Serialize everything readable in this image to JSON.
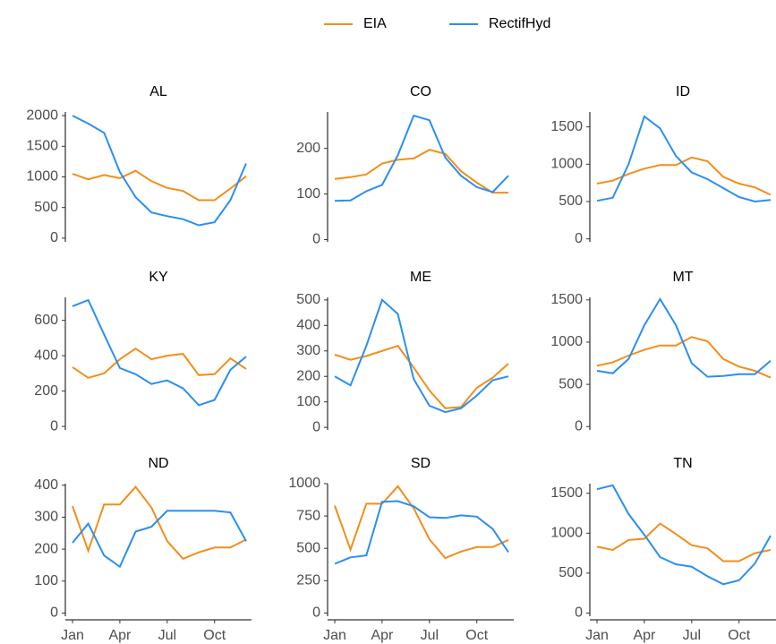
{
  "months": [
    "Jan",
    null,
    null,
    "Apr",
    null,
    null,
    "Jul",
    null,
    null,
    "Oct",
    null,
    null
  ],
  "chart_data": [
    {
      "type": "line",
      "title": "AL",
      "ylim": [
        -60,
        2060
      ],
      "yticks": [
        0,
        500,
        1000,
        1500,
        2000
      ],
      "series": [
        {
          "name": "EIA",
          "color": "#f28e1a",
          "values": [
            1050,
            960,
            1030,
            980,
            1100,
            930,
            820,
            770,
            620,
            620,
            810,
            1010
          ]
        },
        {
          "name": "RectifHyd",
          "color": "#2a8ff0",
          "values": [
            2000,
            1870,
            1720,
            1080,
            670,
            420,
            360,
            310,
            210,
            260,
            620,
            1220
          ]
        }
      ]
    },
    {
      "type": "line",
      "title": "CO",
      "ylim": [
        -5,
        280
      ],
      "yticks": [
        0,
        100,
        200
      ],
      "series": [
        {
          "name": "EIA",
          "color": "#f28e1a",
          "values": [
            133,
            137,
            143,
            167,
            175,
            178,
            197,
            188,
            150,
            125,
            103,
            103
          ]
        },
        {
          "name": "RectifHyd",
          "color": "#2a8ff0",
          "values": [
            85,
            86,
            106,
            120,
            185,
            272,
            262,
            180,
            140,
            115,
            104,
            140
          ]
        }
      ]
    },
    {
      "type": "line",
      "title": "ID",
      "ylim": [
        -40,
        1700
      ],
      "yticks": [
        0,
        500,
        1000,
        1500
      ],
      "series": [
        {
          "name": "EIA",
          "color": "#f28e1a",
          "values": [
            740,
            780,
            870,
            940,
            990,
            990,
            1090,
            1040,
            830,
            740,
            690,
            590
          ]
        },
        {
          "name": "RectifHyd",
          "color": "#2a8ff0",
          "values": [
            510,
            550,
            1000,
            1640,
            1480,
            1110,
            890,
            800,
            680,
            560,
            500,
            520
          ]
        }
      ]
    },
    {
      "type": "line",
      "title": "KY",
      "ylim": [
        -20,
        730
      ],
      "yticks": [
        0,
        200,
        400,
        600
      ],
      "series": [
        {
          "name": "EIA",
          "color": "#f28e1a",
          "values": [
            335,
            275,
            300,
            380,
            440,
            380,
            400,
            410,
            290,
            295,
            385,
            325
          ]
        },
        {
          "name": "RectifHyd",
          "color": "#2a8ff0",
          "values": [
            680,
            715,
            520,
            330,
            295,
            240,
            260,
            215,
            120,
            150,
            320,
            395
          ]
        }
      ]
    },
    {
      "type": "line",
      "title": "ME",
      "ylim": [
        -10,
        510
      ],
      "yticks": [
        0,
        100,
        200,
        300,
        400,
        500
      ],
      "series": [
        {
          "name": "EIA",
          "color": "#f28e1a",
          "values": [
            285,
            265,
            280,
            300,
            320,
            235,
            145,
            75,
            80,
            155,
            195,
            250
          ]
        },
        {
          "name": "RectifHyd",
          "color": "#2a8ff0",
          "values": [
            200,
            165,
            320,
            500,
            445,
            190,
            85,
            60,
            75,
            125,
            185,
            200
          ]
        }
      ]
    },
    {
      "type": "line",
      "title": "MT",
      "ylim": [
        -40,
        1530
      ],
      "yticks": [
        0,
        500,
        1000,
        1500
      ],
      "series": [
        {
          "name": "EIA",
          "color": "#f28e1a",
          "values": [
            720,
            760,
            840,
            910,
            960,
            960,
            1060,
            1010,
            800,
            710,
            660,
            580
          ]
        },
        {
          "name": "RectifHyd",
          "color": "#2a8ff0",
          "values": [
            660,
            630,
            800,
            1200,
            1510,
            1200,
            750,
            590,
            600,
            620,
            620,
            780
          ]
        }
      ]
    },
    {
      "type": "line",
      "title": "ND",
      "ylim": [
        -10,
        405
      ],
      "yticks": [
        0,
        100,
        200,
        300,
        400
      ],
      "series": [
        {
          "name": "EIA",
          "color": "#f28e1a",
          "values": [
            335,
            195,
            340,
            340,
            395,
            330,
            225,
            170,
            190,
            205,
            205,
            230
          ]
        },
        {
          "name": "RectifHyd",
          "color": "#2a8ff0",
          "values": [
            220,
            280,
            180,
            145,
            255,
            270,
            320,
            320,
            320,
            320,
            315,
            225
          ]
        }
      ]
    },
    {
      "type": "line",
      "title": "SD",
      "ylim": [
        -25,
        1000
      ],
      "yticks": [
        0,
        250,
        500,
        750,
        1000
      ],
      "series": [
        {
          "name": "EIA",
          "color": "#f28e1a",
          "values": [
            830,
            490,
            845,
            845,
            980,
            810,
            570,
            425,
            475,
            510,
            510,
            565
          ]
        },
        {
          "name": "RectifHyd",
          "color": "#2a8ff0",
          "values": [
            380,
            430,
            445,
            860,
            865,
            825,
            740,
            735,
            755,
            745,
            650,
            470
          ]
        }
      ]
    },
    {
      "type": "line",
      "title": "TN",
      "ylim": [
        -40,
        1620
      ],
      "yticks": [
        0,
        500,
        1000,
        1500
      ],
      "series": [
        {
          "name": "EIA",
          "color": "#f28e1a",
          "values": [
            830,
            790,
            915,
            930,
            1120,
            990,
            850,
            810,
            650,
            650,
            750,
            790
          ]
        },
        {
          "name": "RectifHyd",
          "color": "#2a8ff0",
          "values": [
            1550,
            1600,
            1240,
            980,
            700,
            610,
            580,
            460,
            360,
            410,
            620,
            970
          ]
        }
      ]
    }
  ]
}
